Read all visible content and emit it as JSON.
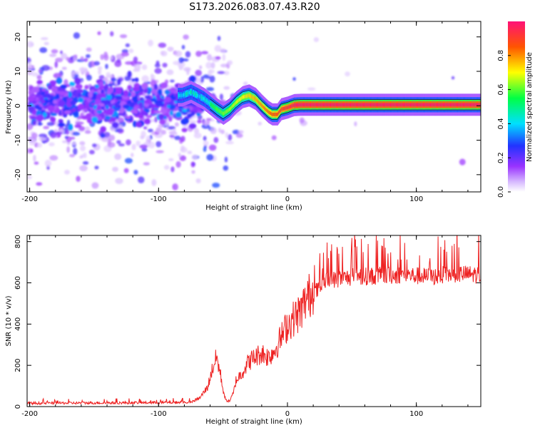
{
  "chart_data": [
    {
      "type": "heatmap",
      "title": "S173.2026.083.07.43.R20",
      "xlabel": "Height of straight line (km)",
      "ylabel": "Frequency (Hz)",
      "xlim": [
        -202,
        150
      ],
      "ylim": [
        -25,
        24.5
      ],
      "xticks": [
        -200,
        -100,
        0,
        100
      ],
      "xtick_labels": [
        "-200",
        "-100",
        "0",
        "100"
      ],
      "yticks": [
        -20,
        -10,
        0,
        10,
        20
      ],
      "ytick_labels": [
        "-20",
        "-10",
        "0",
        "10",
        "20"
      ],
      "colorbar": {
        "label": "Normalized spectral amplitude",
        "range": [
          0,
          1
        ],
        "ticks": [
          0.0,
          0.2,
          0.4,
          0.6,
          0.8
        ],
        "tick_labels": [
          "0.0",
          "0.2",
          "0.4",
          "0.6",
          "0.8"
        ]
      },
      "ridge": {
        "description_points_x": [
          -82,
          -75,
          -65,
          -55,
          -50,
          -45,
          -40,
          -35,
          -30,
          -25,
          -20,
          -15,
          -12,
          -8,
          -5,
          0,
          5,
          10,
          50,
          100,
          150
        ],
        "description_points_y": [
          3,
          4,
          2,
          -1,
          -2.3,
          -1,
          1,
          2.5,
          3,
          2,
          0,
          -1.8,
          -2.5,
          -2.5,
          -1,
          -0.5,
          0.2,
          0.3,
          0.3,
          0.3,
          0.3
        ]
      }
    },
    {
      "type": "line",
      "xlabel": "Height of straight line (km)",
      "ylabel": "SNR (10 * v/v)",
      "xlim": [
        -202,
        150
      ],
      "ylim": [
        0,
        830
      ],
      "xticks": [
        -200,
        -100,
        0,
        100
      ],
      "xtick_labels": [
        "-200",
        "-100",
        "0",
        "100"
      ],
      "yticks": [
        0,
        200,
        400,
        600,
        800
      ],
      "ytick_labels": [
        "0",
        "200",
        "400",
        "600",
        "800"
      ],
      "series": [
        {
          "name": "SNR",
          "color": "#ee2222",
          "x": [
            -202,
            -100,
            -75,
            -68,
            -62,
            -58,
            -55,
            -52,
            -50,
            -48,
            -45,
            -42,
            -40,
            -35,
            -30,
            -25,
            -20,
            -15,
            -10,
            -5,
            0,
            5,
            10,
            15,
            20,
            25,
            30,
            40,
            50,
            70,
            90,
            110,
            130,
            150
          ],
          "y": [
            15,
            18,
            20,
            40,
            90,
            180,
            230,
            150,
            80,
            30,
            25,
            60,
            120,
            160,
            210,
            230,
            250,
            230,
            260,
            320,
            380,
            410,
            440,
            500,
            540,
            560,
            600,
            610,
            620,
            625,
            630,
            620,
            635,
            630
          ]
        }
      ]
    }
  ]
}
